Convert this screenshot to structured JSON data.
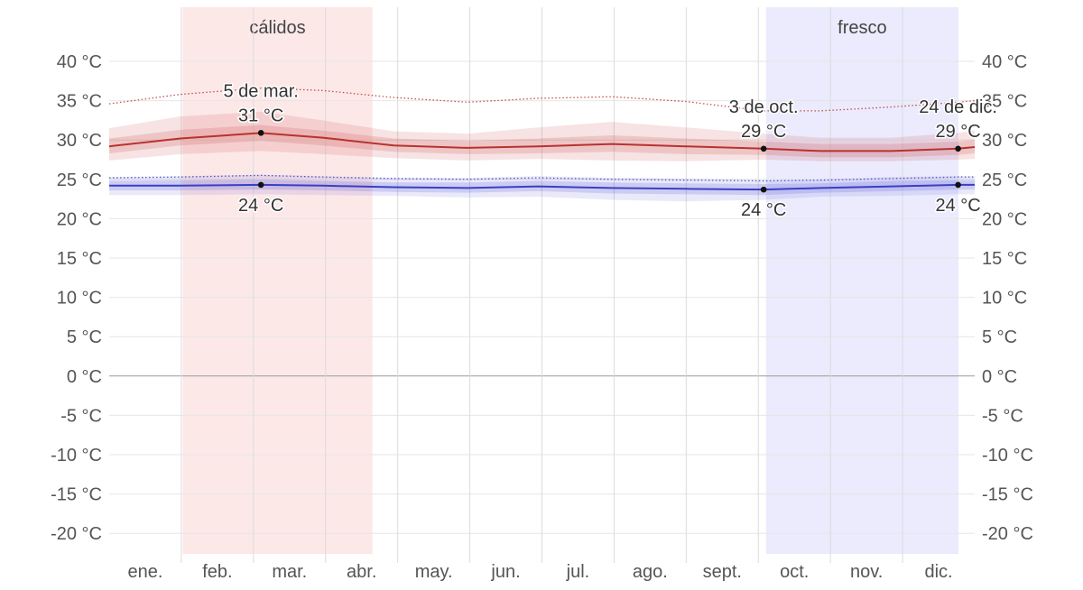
{
  "chart_data": {
    "type": "line",
    "y_unit_suffix": " °C",
    "ylim": [
      -23,
      42
    ],
    "y_ticks": [
      40,
      35,
      30,
      25,
      20,
      15,
      10,
      5,
      0,
      -5,
      -10,
      -15,
      -20
    ],
    "y_tick_labels": [
      "40 °C",
      "35 °C",
      "30 °C",
      "25 °C",
      "20 °C",
      "15 °C",
      "10 °C",
      "5 °C",
      "0 °C",
      "-5 °C",
      "-10 °C",
      "-15 °C",
      "-20 °C"
    ],
    "x_range_days": [
      0,
      365
    ],
    "months": [
      "ene.",
      "feb.",
      "mar.",
      "abr.",
      "may.",
      "jun.",
      "jul.",
      "ago.",
      "sept.",
      "oct.",
      "nov.",
      "dic."
    ],
    "grid": true,
    "seasons": [
      {
        "label": "cálidos",
        "start_day": 31,
        "end_day": 111,
        "color": "#fde8e8"
      },
      {
        "label": "fresco",
        "start_day": 277,
        "end_day": 365,
        "color": "#ebebfd"
      }
    ],
    "series": [
      {
        "role": "high",
        "color": "#b8322f",
        "x": [
          0,
          30,
          64,
          90,
          120,
          151,
          181,
          212,
          243,
          276,
          300,
          330,
          358,
          365
        ],
        "y": [
          29.2,
          30.2,
          30.9,
          30.3,
          29.3,
          29.0,
          29.2,
          29.5,
          29.2,
          28.9,
          28.6,
          28.6,
          28.9,
          29.1
        ],
        "band_inner_upper": [
          30.2,
          31.3,
          31.9,
          31.2,
          30.2,
          29.9,
          30.2,
          30.6,
          30.2,
          29.8,
          29.5,
          29.5,
          29.8,
          30.0
        ],
        "band_inner_lower": [
          28.3,
          29.3,
          29.9,
          29.3,
          28.5,
          28.2,
          28.3,
          28.5,
          28.2,
          28.1,
          27.8,
          27.8,
          28.1,
          28.3
        ],
        "band_outer_upper": [
          31.5,
          33.0,
          33.6,
          32.5,
          31.1,
          30.8,
          31.6,
          32.3,
          31.6,
          30.8,
          30.3,
          30.3,
          30.9,
          31.2
        ],
        "band_outer_lower": [
          27.4,
          28.2,
          28.6,
          28.2,
          27.7,
          27.4,
          27.6,
          27.4,
          27.3,
          27.5,
          27.3,
          27.3,
          27.5,
          27.6
        ],
        "record": [
          34.6,
          35.8,
          36.6,
          36.3,
          35.4,
          34.8,
          35.3,
          35.5,
          34.9,
          33.7,
          33.7,
          34.2,
          34.8,
          35.0
        ]
      },
      {
        "role": "low",
        "color": "#3b3fc4",
        "x": [
          0,
          30,
          64,
          90,
          120,
          151,
          181,
          212,
          243,
          276,
          300,
          330,
          358,
          365
        ],
        "y": [
          24.2,
          24.2,
          24.3,
          24.2,
          24.0,
          23.9,
          24.1,
          23.9,
          23.8,
          23.7,
          23.9,
          24.1,
          24.3,
          24.3
        ],
        "band_inner_upper": [
          24.8,
          24.9,
          25.0,
          24.8,
          24.6,
          24.6,
          24.8,
          24.6,
          24.5,
          24.4,
          24.5,
          24.8,
          24.9,
          24.9
        ],
        "band_inner_lower": [
          23.6,
          23.6,
          23.7,
          23.6,
          23.4,
          23.3,
          23.5,
          23.2,
          23.1,
          23.0,
          23.3,
          23.5,
          23.7,
          23.7
        ],
        "band_outer_upper": [
          25.3,
          25.4,
          25.6,
          25.4,
          25.2,
          25.2,
          25.4,
          25.2,
          25.1,
          24.9,
          25.0,
          25.3,
          25.4,
          25.4
        ],
        "band_outer_lower": [
          23.0,
          23.0,
          23.1,
          23.0,
          22.9,
          22.7,
          22.8,
          22.4,
          22.2,
          22.4,
          22.8,
          22.9,
          23.1,
          23.1
        ],
        "record": [
          25.2,
          25.3,
          25.5,
          25.3,
          25.1,
          25.0,
          25.2,
          25.0,
          24.9,
          24.8,
          24.9,
          25.1,
          25.3,
          25.3
        ]
      }
    ],
    "annotations": [
      {
        "day": 64,
        "value": 30.9,
        "date_label": "5 de mar.",
        "value_label": "31 °C",
        "series": "high",
        "anchor": "above"
      },
      {
        "day": 64,
        "value": 24.3,
        "date_label": "",
        "value_label": "24 °C",
        "series": "low",
        "anchor": "below"
      },
      {
        "day": 276,
        "value": 28.9,
        "date_label": "3 de oct.",
        "value_label": "29 °C",
        "series": "high",
        "anchor": "above"
      },
      {
        "day": 276,
        "value": 23.7,
        "date_label": "",
        "value_label": "24 °C",
        "series": "low",
        "anchor": "below"
      },
      {
        "day": 358,
        "value": 28.9,
        "date_label": "24 de dic.",
        "value_label": "29 °C",
        "series": "high",
        "anchor": "above"
      },
      {
        "day": 358,
        "value": 24.3,
        "date_label": "",
        "value_label": "24 °C",
        "series": "low",
        "anchor": "below"
      }
    ]
  }
}
